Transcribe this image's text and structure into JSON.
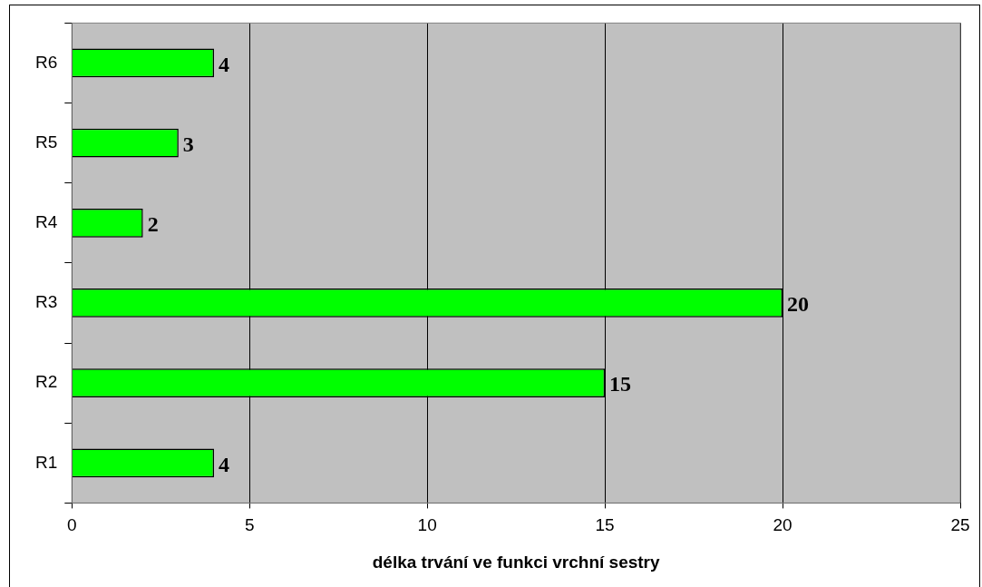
{
  "chart_data": {
    "type": "bar",
    "orientation": "horizontal",
    "xlabel": "délka trvání ve funkci vrchní sestry",
    "categories": [
      "R6",
      "R5",
      "R4",
      "R3",
      "R2",
      "R1"
    ],
    "values": [
      4,
      3,
      2,
      20,
      15,
      4
    ],
    "color": "#00ff00",
    "xlim": [
      0,
      25
    ],
    "xticks": [
      0,
      5,
      10,
      15,
      20,
      25
    ],
    "grid": "x",
    "legend": false,
    "data_labels": true
  }
}
